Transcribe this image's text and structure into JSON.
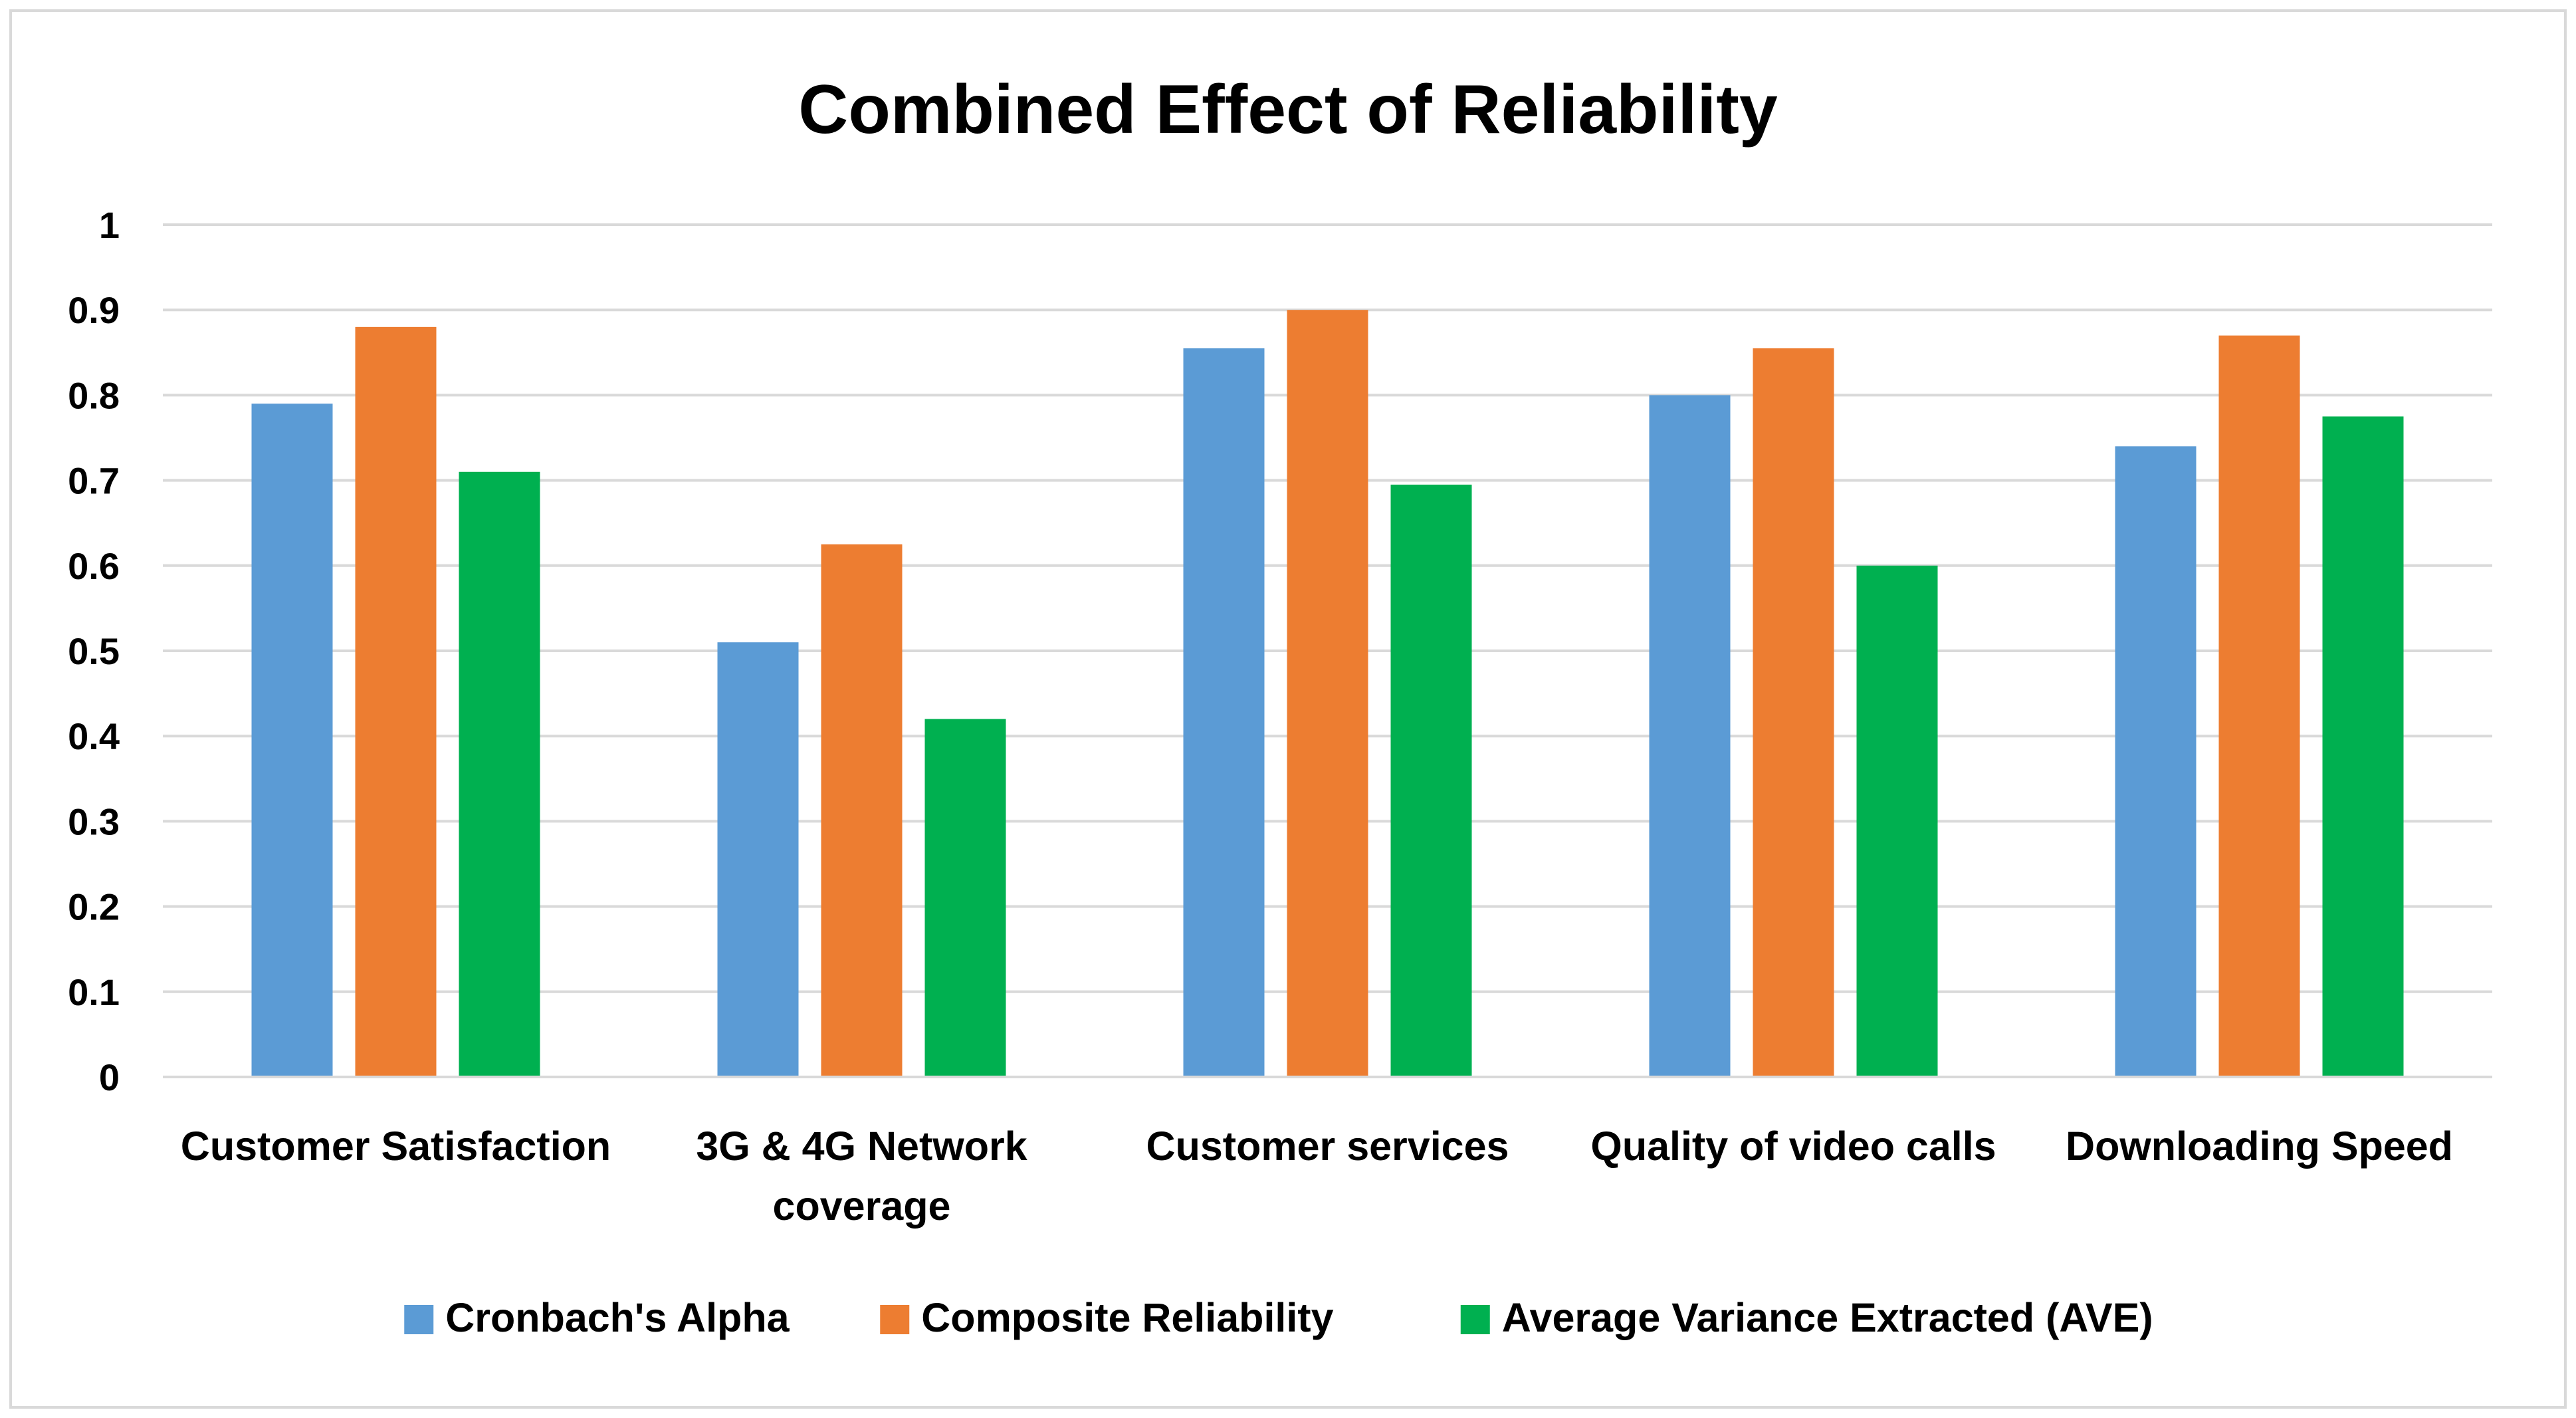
{
  "chart_data": {
    "type": "bar",
    "title": "Combined Effect of Reliability",
    "xlabel": "",
    "ylabel": "",
    "ylim": [
      0,
      1
    ],
    "yticks": [
      0,
      0.1,
      0.2,
      0.3,
      0.4,
      0.5,
      0.6,
      0.7,
      0.8,
      0.9,
      1
    ],
    "ytick_labels": [
      "0",
      "0.1",
      "0.2",
      "0.3",
      "0.4",
      "0.5",
      "0.6",
      "0.7",
      "0.8",
      "0.9",
      "1"
    ],
    "grid": true,
    "legend_position": "bottom",
    "categories": [
      [
        "Customer Satisfaction"
      ],
      [
        "3G & 4G Network",
        "coverage"
      ],
      [
        "Customer services"
      ],
      [
        "Quality of video calls"
      ],
      [
        "Downloading Speed"
      ]
    ],
    "series": [
      {
        "name": "Cronbach's Alpha",
        "color": "#5b9bd5",
        "values": [
          0.79,
          0.51,
          0.855,
          0.8,
          0.74
        ]
      },
      {
        "name": "Composite Reliability",
        "color": "#ed7d31",
        "values": [
          0.88,
          0.625,
          0.9,
          0.855,
          0.87
        ]
      },
      {
        "name": "Average Variance Extracted (AVE)",
        "color": "#00b050",
        "values": [
          0.71,
          0.42,
          0.695,
          0.6,
          0.775
        ]
      }
    ],
    "gridline_color": "#d9d9d9"
  }
}
